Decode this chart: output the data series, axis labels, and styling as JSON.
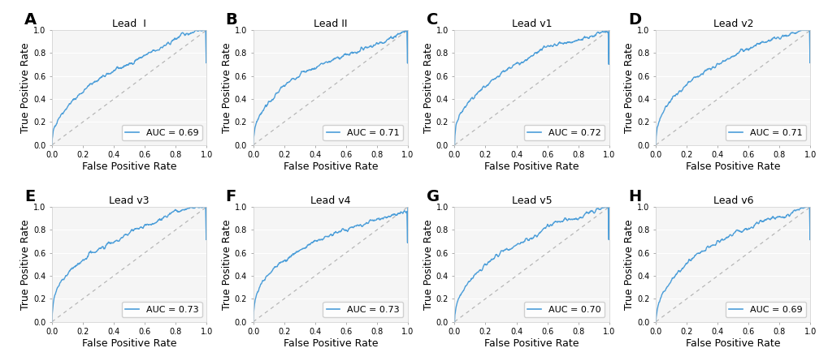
{
  "panels": [
    {
      "label": "A",
      "title": "Lead  I",
      "auc": 0.69
    },
    {
      "label": "B",
      "title": "Lead II",
      "auc": 0.71
    },
    {
      "label": "C",
      "title": "Lead v1",
      "auc": 0.72
    },
    {
      "label": "D",
      "title": "Lead v2",
      "auc": 0.71
    },
    {
      "label": "E",
      "title": "Lead v3",
      "auc": 0.73
    },
    {
      "label": "F",
      "title": "Lead v4",
      "auc": 0.73
    },
    {
      "label": "G",
      "title": "Lead v5",
      "auc": 0.7
    },
    {
      "label": "H",
      "title": "Lead v6",
      "auc": 0.69
    }
  ],
  "roc_color": "#4c9ed9",
  "diag_color": "#b0b0b0",
  "bg_color": "#f5f5f5",
  "grid_color": "#ffffff",
  "xlabel": "False Positive Rate",
  "ylabel": "True Positive Rate",
  "xlim": [
    0.0,
    1.0
  ],
  "ylim": [
    0.0,
    1.0
  ],
  "xticks": [
    0.0,
    0.2,
    0.4,
    0.6,
    0.8,
    1.0
  ],
  "yticks": [
    0.0,
    0.2,
    0.4,
    0.6,
    0.8,
    1.0
  ],
  "label_fontsize": 9,
  "title_fontsize": 9,
  "tick_fontsize": 7,
  "legend_fontsize": 8,
  "panel_label_fontsize": 14
}
